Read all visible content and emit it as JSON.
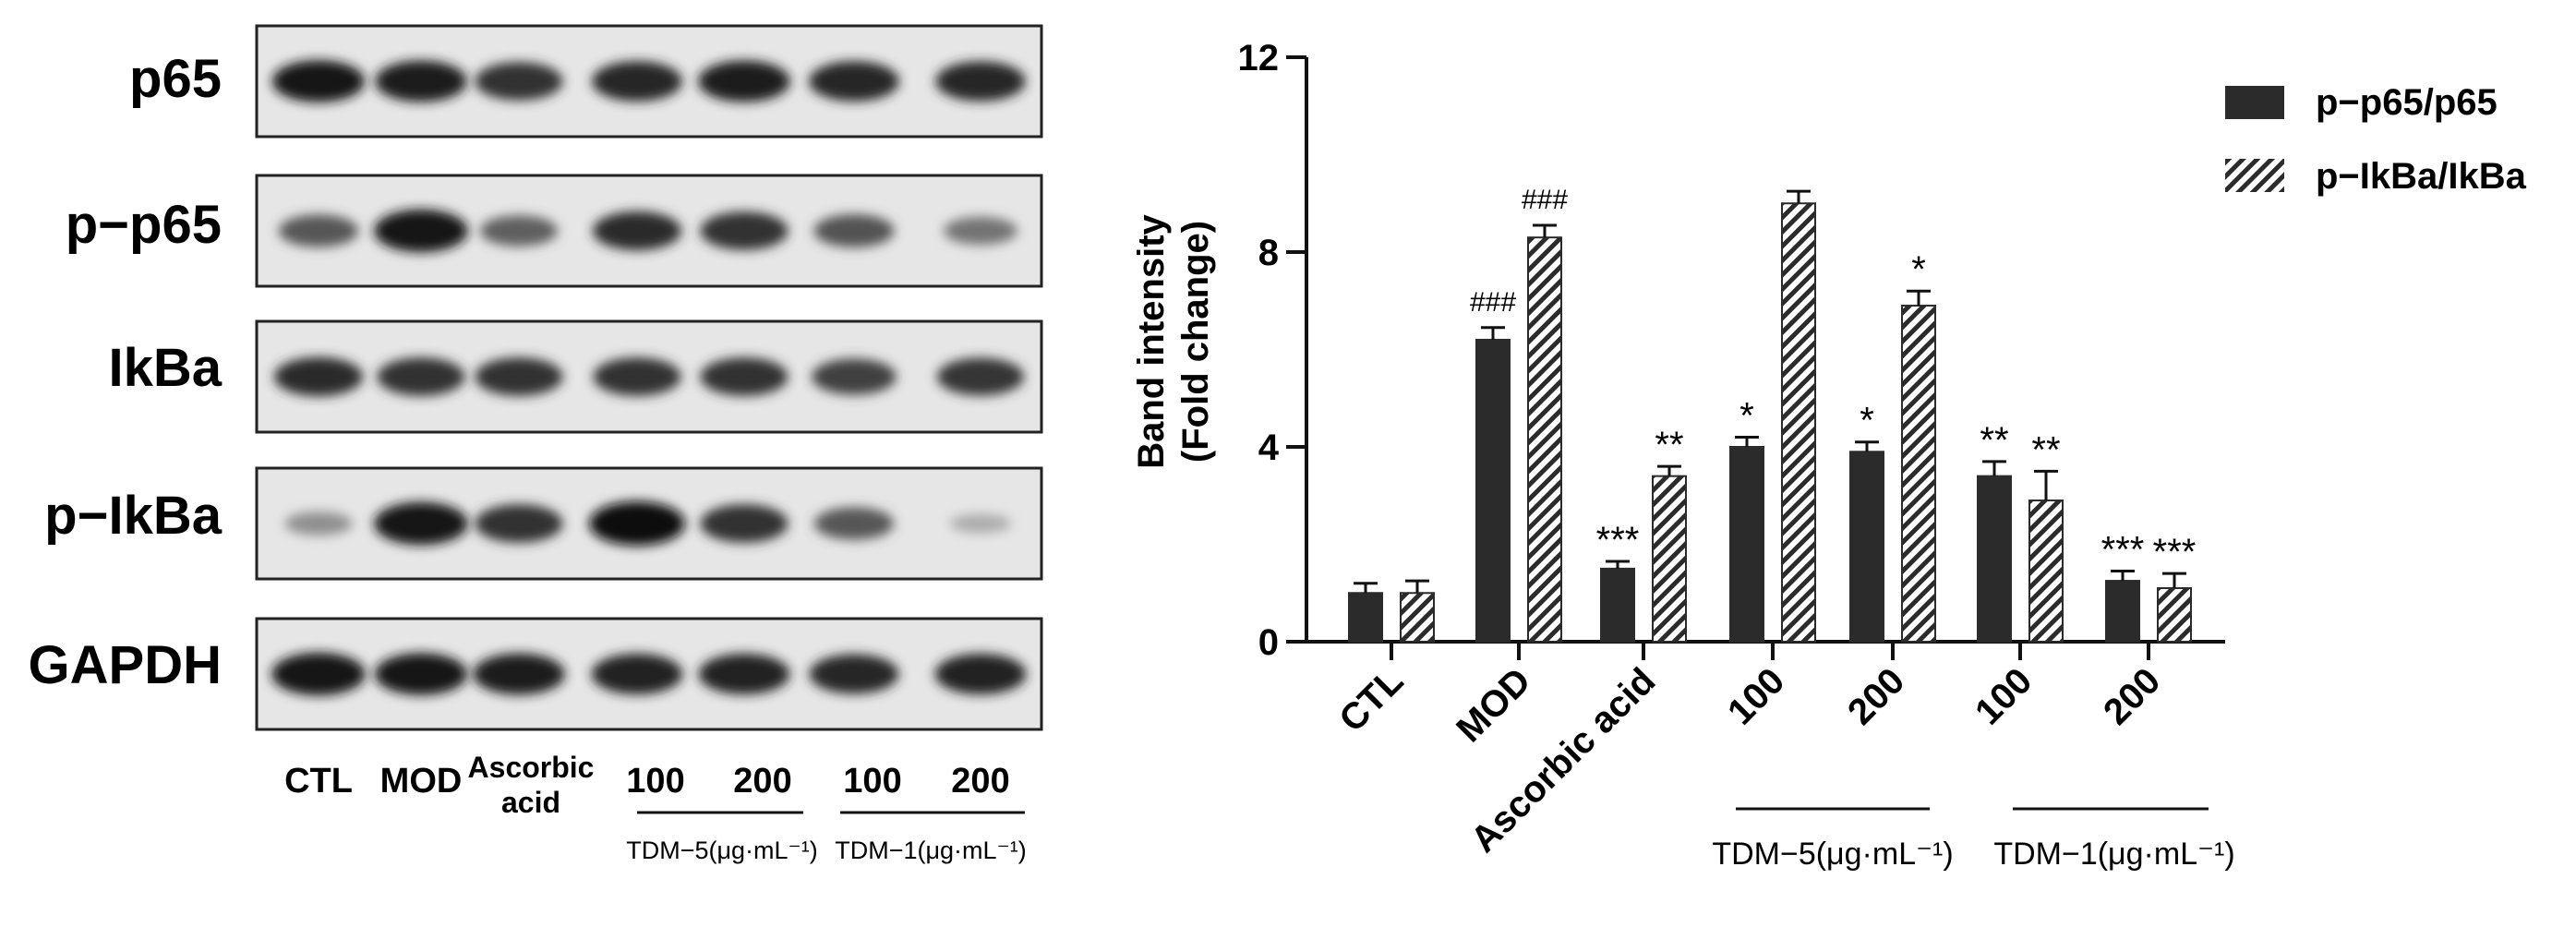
{
  "blot": {
    "rows": [
      {
        "label": "p65",
        "intensity": [
          0.92,
          0.9,
          0.8,
          0.86,
          0.9,
          0.86,
          0.85
        ]
      },
      {
        "label": "p−p65",
        "intensity": [
          0.6,
          0.95,
          0.55,
          0.82,
          0.8,
          0.62,
          0.45
        ]
      },
      {
        "label": "IkBa",
        "intensity": [
          0.82,
          0.8,
          0.8,
          0.8,
          0.8,
          0.72,
          0.78
        ]
      },
      {
        "label": "p−IkBa",
        "intensity": [
          0.3,
          0.95,
          0.8,
          1.0,
          0.8,
          0.6,
          0.15
        ]
      },
      {
        "label": "GAPDH",
        "intensity": [
          0.95,
          0.92,
          0.9,
          0.88,
          0.88,
          0.84,
          0.88
        ]
      }
    ],
    "lanes": [
      "CTL",
      "MOD",
      "Ascorbic",
      "acid",
      "100",
      "200",
      "100",
      "200"
    ],
    "groups": [
      "TDM−5(μg·mL⁻¹)",
      "TDM−1(μg·mL⁻¹)"
    ]
  },
  "chart_data": {
    "type": "bar",
    "ylabel": [
      "Band intensity",
      "(Fold change)"
    ],
    "ylim": [
      0,
      12
    ],
    "yticks": [
      "0",
      "4",
      "8",
      "12"
    ],
    "categories": [
      "CTL",
      "MOD",
      "Ascorbic acid",
      "100",
      "200",
      "100",
      "200"
    ],
    "group_labels": [
      "TDM−5(μg·mL⁻¹)",
      "TDM−1(μg·mL⁻¹)"
    ],
    "series": [
      {
        "name": "p−p65/p65",
        "fill": "solid",
        "values": [
          1.0,
          6.2,
          1.5,
          4.0,
          3.9,
          3.4,
          1.25
        ],
        "errors": [
          0.2,
          0.25,
          0.15,
          0.2,
          0.2,
          0.3,
          0.2
        ],
        "annotations": [
          "",
          "###",
          "***",
          "*",
          "*",
          "**",
          "***"
        ]
      },
      {
        "name": "p−IkBa/IkBa",
        "fill": "hatched",
        "values": [
          1.0,
          8.3,
          3.4,
          9.0,
          6.9,
          2.9,
          1.1
        ],
        "errors": [
          0.25,
          0.25,
          0.2,
          0.25,
          0.3,
          0.6,
          0.3
        ],
        "annotations": [
          "",
          "###",
          "**",
          "",
          "*",
          "**",
          "***"
        ]
      }
    ],
    "colors": {
      "bar": "#2b2b2b",
      "hatch": "#2b2b2b"
    }
  }
}
